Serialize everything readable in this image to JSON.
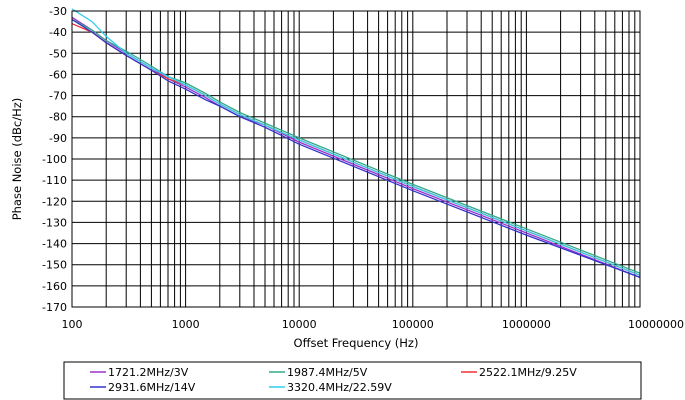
{
  "chart_data": {
    "type": "line",
    "title": "",
    "xlabel": "Offset Frequency (Hz)",
    "ylabel": "Phase Noise (dBc/Hz)",
    "xscale": "log",
    "xlim": [
      100,
      10000000
    ],
    "ylim": [
      -170,
      -30
    ],
    "grid": true,
    "legend_position": "bottom",
    "x_ticks": [
      "100",
      "1000",
      "10000",
      "100000",
      "1000000",
      "10000000"
    ],
    "y_ticks": [
      "-30",
      "-40",
      "-50",
      "-60",
      "-70",
      "-80",
      "-90",
      "-100",
      "-110",
      "-120",
      "-130",
      "-140",
      "-150",
      "-160",
      "-170"
    ],
    "x": [
      100,
      150,
      200,
      300,
      500,
      700,
      1000,
      1500,
      2000,
      3000,
      5000,
      10000,
      100000,
      1000000,
      10000000
    ],
    "series": [
      {
        "name": "1721.2MHz/3V",
        "color": "#9933cc",
        "values": [
          -33,
          -39,
          -44,
          -50,
          -57,
          -62,
          -66,
          -71,
          -75,
          -80,
          -84,
          -92,
          -114,
          -135,
          -156
        ]
      },
      {
        "name": "1987.4MHz/5V",
        "color": "#33aa88",
        "values": [
          -34,
          -39,
          -44,
          -49,
          -56,
          -61,
          -64,
          -69,
          -73,
          -78,
          -83,
          -90,
          -112,
          -133,
          -154
        ]
      },
      {
        "name": "2522.1MHz/9.25V",
        "color": "#ee3333",
        "values": [
          -36,
          -40,
          -45,
          -51,
          -58,
          -62,
          -65,
          -70,
          -74,
          -79,
          -84,
          -91,
          -113,
          -134,
          -155
        ]
      },
      {
        "name": "2931.6MHz/14V",
        "color": "#3333cc",
        "values": [
          -34,
          -40,
          -45,
          -51,
          -58,
          -63,
          -67,
          -72,
          -75,
          -80,
          -85,
          -93,
          -115,
          -136,
          -156
        ]
      },
      {
        "name": "3320.4MHz/22.59V",
        "color": "#33ccee",
        "values": [
          -29,
          -35,
          -42,
          -50,
          -57,
          -61,
          -65,
          -70,
          -74,
          -79,
          -84,
          -91,
          -113,
          -134,
          -155
        ]
      }
    ]
  }
}
